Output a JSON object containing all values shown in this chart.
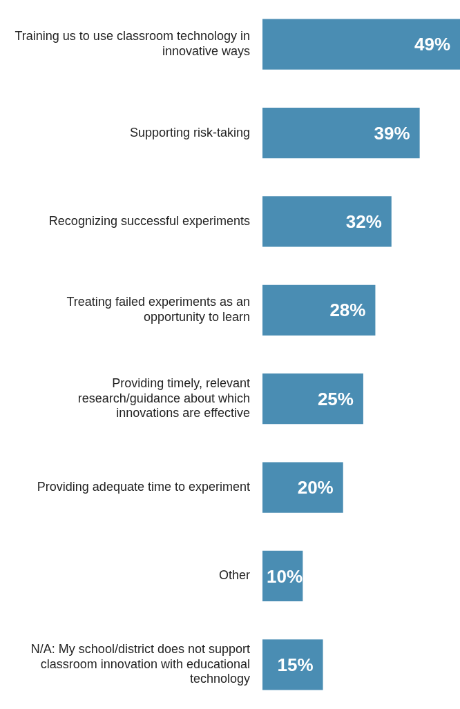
{
  "chart_data": {
    "type": "bar",
    "orientation": "horizontal",
    "categories": [
      "Training us to use classroom technology in innovative ways",
      "Supporting risk-taking",
      "Recognizing successful experiments",
      "Treating failed experiments as an opportunity to learn",
      "Providing timely, relevant research/guidance about which innovations are effective",
      "Providing adequate time to experiment",
      "Other",
      "N/A: My school/district does not support classroom innovation with educational technology"
    ],
    "values": [
      49,
      39,
      32,
      28,
      25,
      20,
      10,
      15
    ],
    "value_labels": [
      "49%",
      "39%",
      "32%",
      "28%",
      "25%",
      "20%",
      "10%",
      "15%"
    ],
    "color": "#4a8db3",
    "tick_labels": "y"
  }
}
